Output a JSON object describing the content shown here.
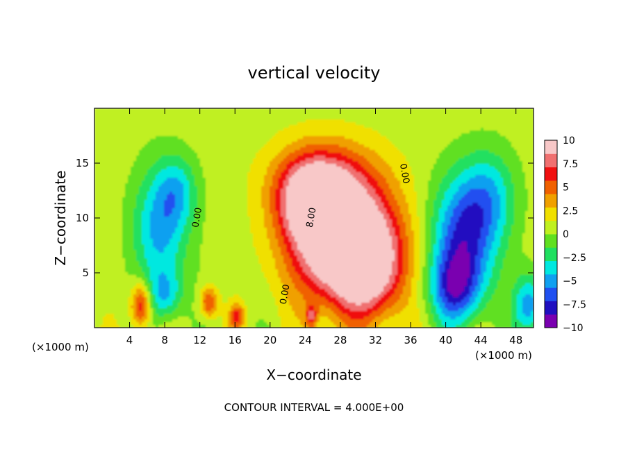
{
  "chart_data": {
    "type": "heatmap",
    "title": "vertical velocity",
    "xlabel": "X−coordinate",
    "ylabel": "Z−coordinate",
    "x_unit_left": "(×1000 m)",
    "x_unit_right": "(×1000 m)",
    "footer": "CONTOUR INTERVAL = 4.000E+00",
    "xlim": [
      0,
      50
    ],
    "ylim": [
      0,
      20
    ],
    "x_ticks": [
      4,
      8,
      12,
      16,
      20,
      24,
      28,
      32,
      36,
      40,
      44,
      48
    ],
    "x_tick_labels": [
      "4",
      "8",
      "12",
      "16",
      "20",
      "24",
      "28",
      "32",
      "36",
      "40",
      "44",
      "48"
    ],
    "y_ticks": [
      5,
      10,
      15
    ],
    "y_tick_labels": [
      "5",
      "10",
      "15"
    ],
    "colorbar": {
      "range": [
        -10,
        10
      ],
      "ticks": [
        10,
        7.5,
        5,
        2.5,
        0,
        -2.5,
        -5,
        -7.5,
        -10
      ],
      "tick_labels": [
        "10",
        "7.5",
        "5",
        "2.5",
        "0",
        "−2.5",
        "−5",
        "−7.5",
        "−10"
      ],
      "colors": [
        "#7a00b0",
        "#2010c0",
        "#2050f0",
        "#10a0f0",
        "#00e8e0",
        "#20e060",
        "#60e020",
        "#c0f020",
        "#f0e000",
        "#f0a000",
        "#f06000",
        "#f01010",
        "#f07070",
        "#f8c8c8"
      ]
    },
    "contour_interval": 4.0,
    "contour_labels": [
      {
        "text": "0.00",
        "x": 12,
        "y": 10
      },
      {
        "text": "0.00",
        "x": 35,
        "y": 14
      },
      {
        "text": "0.00",
        "x": 22,
        "y": 3
      },
      {
        "text": "8.00",
        "x": 25,
        "y": 10
      }
    ],
    "features": [
      {
        "kind": "updraft",
        "x": 28.5,
        "z": 7.5,
        "w": 13,
        "sx": 4.2,
        "sz": 3.8
      },
      {
        "kind": "updraft",
        "x": 24.5,
        "z": 11.5,
        "w": 7,
        "sx": 2.6,
        "sz": 2.6
      },
      {
        "kind": "updraft",
        "x": 26.5,
        "z": 13.5,
        "w": 5,
        "sx": 4.2,
        "sz": 2.6
      },
      {
        "kind": "updraft",
        "x": 31.5,
        "z": 5.0,
        "w": 5,
        "sx": 2.6,
        "sz": 3.2
      },
      {
        "kind": "downdraft",
        "x": 7.5,
        "z": 9.0,
        "w": -5.5,
        "sx": 2.2,
        "sz": 4.0
      },
      {
        "kind": "downdraft",
        "x": 9.5,
        "z": 12.5,
        "w": -3.5,
        "sx": 1.6,
        "sz": 2.2
      },
      {
        "kind": "downdraft",
        "x": 8.0,
        "z": 3.0,
        "w": -4,
        "sx": 1.4,
        "sz": 1.6
      },
      {
        "kind": "downdraft",
        "x": 42.0,
        "z": 8.0,
        "w": -8,
        "sx": 2.6,
        "sz": 4.0
      },
      {
        "kind": "downdraft",
        "x": 41.0,
        "z": 3.5,
        "w": -6,
        "sx": 2.0,
        "sz": 2.2
      },
      {
        "kind": "downdraft",
        "x": 45.0,
        "z": 12.0,
        "w": -4,
        "sx": 2.2,
        "sz": 3.0
      },
      {
        "kind": "downdraft",
        "x": 49.5,
        "z": 2.0,
        "w": -6,
        "sx": 1.2,
        "sz": 2.0
      },
      {
        "kind": "updraft",
        "x": 5.3,
        "z": 2.0,
        "w": 7,
        "sx": 0.8,
        "sz": 1.5
      },
      {
        "kind": "updraft",
        "x": 13.0,
        "z": 2.3,
        "w": 5.5,
        "sx": 0.7,
        "sz": 1.0
      },
      {
        "kind": "updraft",
        "x": 16.2,
        "z": 1.0,
        "w": 5.5,
        "sx": 0.6,
        "sz": 0.8
      },
      {
        "kind": "updraft",
        "x": 24.7,
        "z": 1.0,
        "w": 5,
        "sx": 0.5,
        "sz": 0.8
      }
    ]
  }
}
